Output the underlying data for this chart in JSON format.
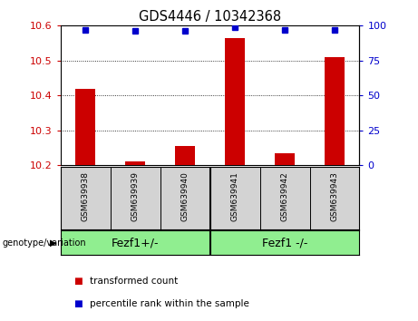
{
  "title": "GDS4446 / 10342368",
  "samples": [
    "GSM639938",
    "GSM639939",
    "GSM639940",
    "GSM639941",
    "GSM639942",
    "GSM639943"
  ],
  "transformed_counts": [
    10.42,
    10.21,
    10.255,
    10.565,
    10.235,
    10.51
  ],
  "percentile_ranks": [
    97,
    96,
    96,
    99,
    97,
    97
  ],
  "bar_color": "#cc0000",
  "dot_color": "#0000cc",
  "ylim_left": [
    10.2,
    10.6
  ],
  "ylim_right": [
    0,
    100
  ],
  "yticks_left": [
    10.2,
    10.3,
    10.4,
    10.5,
    10.6
  ],
  "yticks_right": [
    0,
    25,
    50,
    75,
    100
  ],
  "groups": [
    {
      "label": "Fezf1+/-",
      "color": "#90ee90"
    },
    {
      "label": "Fezf1 -/-",
      "color": "#90ee90"
    }
  ],
  "group_label_prefix": "genotype/variation",
  "legend_items": [
    {
      "label": "transformed count",
      "color": "#cc0000"
    },
    {
      "label": "percentile rank within the sample",
      "color": "#0000cc"
    }
  ],
  "sample_band_color": "#d3d3d3",
  "plot_bg": "#ffffff",
  "tick_color_left": "#cc0000",
  "tick_color_right": "#0000cc",
  "bar_width": 0.4
}
